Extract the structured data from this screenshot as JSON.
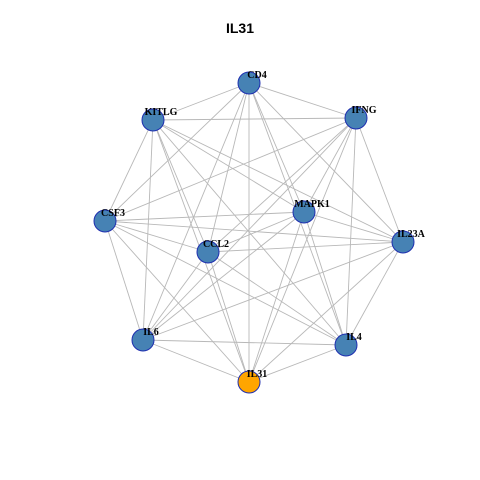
{
  "title": "IL31",
  "colors": {
    "node_default": "#4682b4",
    "node_highlight": "#ffa500",
    "node_border": "#1f2fb0",
    "edge": "#b8b8b8"
  },
  "nodes": [
    {
      "id": "CD4",
      "label": "CD4",
      "highlight": false
    },
    {
      "id": "IFNG",
      "label": "IFNG",
      "highlight": false
    },
    {
      "id": "KITLG",
      "label": "KITLG",
      "highlight": false
    },
    {
      "id": "MAPK1",
      "label": "MAPK1",
      "highlight": false
    },
    {
      "id": "CSF3",
      "label": "CSF3",
      "highlight": false
    },
    {
      "id": "IL23A",
      "label": "IL23A",
      "highlight": false
    },
    {
      "id": "CCL2",
      "label": "CCL2",
      "highlight": false
    },
    {
      "id": "IL6",
      "label": "IL6",
      "highlight": false
    },
    {
      "id": "IL4",
      "label": "IL4",
      "highlight": false
    },
    {
      "id": "IL31",
      "label": "IL31",
      "highlight": true
    }
  ],
  "edges": [
    [
      "CD4",
      "IFNG"
    ],
    [
      "CD4",
      "KITLG"
    ],
    [
      "CD4",
      "MAPK1"
    ],
    [
      "CD4",
      "CSF3"
    ],
    [
      "CD4",
      "IL23A"
    ],
    [
      "CD4",
      "CCL2"
    ],
    [
      "CD4",
      "IL6"
    ],
    [
      "CD4",
      "IL4"
    ],
    [
      "CD4",
      "IL31"
    ],
    [
      "IFNG",
      "KITLG"
    ],
    [
      "IFNG",
      "MAPK1"
    ],
    [
      "IFNG",
      "CSF3"
    ],
    [
      "IFNG",
      "IL23A"
    ],
    [
      "IFNG",
      "CCL2"
    ],
    [
      "IFNG",
      "IL6"
    ],
    [
      "IFNG",
      "IL4"
    ],
    [
      "IFNG",
      "IL31"
    ],
    [
      "KITLG",
      "MAPK1"
    ],
    [
      "KITLG",
      "CSF3"
    ],
    [
      "KITLG",
      "IL23A"
    ],
    [
      "KITLG",
      "CCL2"
    ],
    [
      "KITLG",
      "IL6"
    ],
    [
      "KITLG",
      "IL4"
    ],
    [
      "KITLG",
      "IL31"
    ],
    [
      "MAPK1",
      "CSF3"
    ],
    [
      "MAPK1",
      "IL23A"
    ],
    [
      "MAPK1",
      "CCL2"
    ],
    [
      "MAPK1",
      "IL6"
    ],
    [
      "MAPK1",
      "IL4"
    ],
    [
      "MAPK1",
      "IL31"
    ],
    [
      "CSF3",
      "IL23A"
    ],
    [
      "CSF3",
      "CCL2"
    ],
    [
      "CSF3",
      "IL6"
    ],
    [
      "CSF3",
      "IL4"
    ],
    [
      "CSF3",
      "IL31"
    ],
    [
      "IL23A",
      "CCL2"
    ],
    [
      "IL23A",
      "IL6"
    ],
    [
      "IL23A",
      "IL4"
    ],
    [
      "IL23A",
      "IL31"
    ],
    [
      "CCL2",
      "IL6"
    ],
    [
      "CCL2",
      "IL4"
    ],
    [
      "CCL2",
      "IL31"
    ],
    [
      "IL6",
      "IL4"
    ],
    [
      "IL6",
      "IL31"
    ],
    [
      "IL4",
      "IL31"
    ]
  ]
}
